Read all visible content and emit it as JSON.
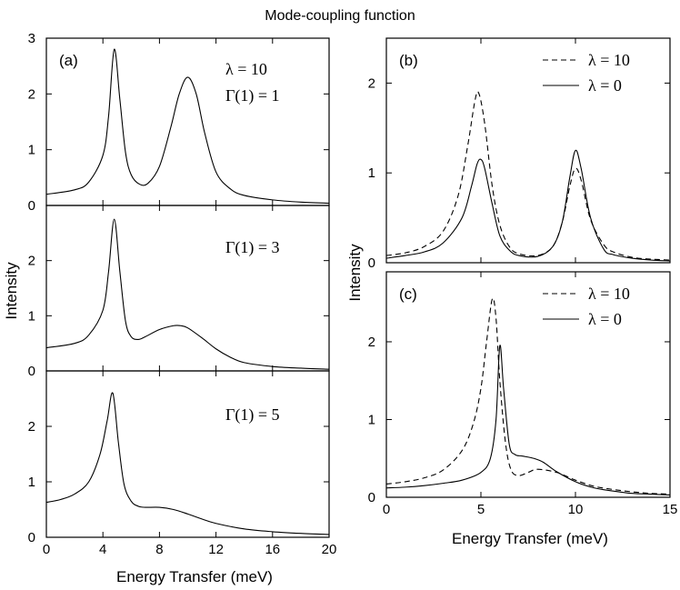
{
  "figure": {
    "title": "Mode-coupling function",
    "left_xlabel": "Energy Transfer (meV)",
    "left_ylabel": "Intensity",
    "right_xlabel": "Energy Transfer (meV)",
    "right_ylabel": "Intensity"
  },
  "chart_data": [
    {
      "id": "a1",
      "type": "line",
      "panel_label": "(a)",
      "annotations": [
        "λ = 10",
        "Γ(1) = 1"
      ],
      "xlim": [
        0,
        20
      ],
      "ylim": [
        0,
        3
      ],
      "xticks": [
        0,
        4,
        8,
        12,
        16,
        20
      ],
      "yticks": [
        0,
        1,
        2,
        3
      ],
      "ytick_labels": [
        "0",
        "1",
        "2",
        "3"
      ],
      "show_xtick_labels": false,
      "series": [
        {
          "name": "Γ(1) = 1",
          "style": "solid",
          "x": [
            0,
            2,
            3,
            4,
            4.4,
            4.8,
            5.2,
            5.6,
            6,
            6.6,
            7.2,
            8,
            8.8,
            9.4,
            10,
            10.6,
            11.2,
            12,
            13,
            14,
            16,
            18,
            20
          ],
          "y": [
            0.2,
            0.28,
            0.42,
            0.9,
            1.6,
            2.8,
            1.9,
            0.95,
            0.55,
            0.38,
            0.4,
            0.7,
            1.4,
            2.0,
            2.3,
            2.0,
            1.3,
            0.6,
            0.3,
            0.18,
            0.1,
            0.06,
            0.04
          ]
        }
      ]
    },
    {
      "id": "a2",
      "type": "line",
      "panel_label": "",
      "annotations": [
        "Γ(1) = 3"
      ],
      "xlim": [
        0,
        20
      ],
      "ylim": [
        0,
        3
      ],
      "xticks": [
        0,
        4,
        8,
        12,
        16,
        20
      ],
      "yticks": [
        0,
        1,
        2
      ],
      "ytick_labels": [
        "0",
        "1",
        "2"
      ],
      "show_xtick_labels": false,
      "series": [
        {
          "name": "Γ(1) = 3",
          "style": "solid",
          "x": [
            0,
            2,
            3,
            4,
            4.4,
            4.8,
            5.2,
            5.6,
            6,
            6.5,
            7,
            8,
            9,
            9.5,
            10,
            11,
            12,
            13,
            14,
            16,
            18,
            20
          ],
          "y": [
            0.42,
            0.5,
            0.65,
            1.1,
            1.8,
            2.75,
            1.8,
            0.9,
            0.62,
            0.57,
            0.62,
            0.75,
            0.82,
            0.82,
            0.78,
            0.6,
            0.4,
            0.25,
            0.15,
            0.08,
            0.05,
            0.03
          ]
        }
      ]
    },
    {
      "id": "a3",
      "type": "line",
      "panel_label": "",
      "annotations": [
        "Γ(1) = 5"
      ],
      "xlim": [
        0,
        20
      ],
      "ylim": [
        0,
        3
      ],
      "xticks": [
        0,
        4,
        8,
        12,
        16,
        20
      ],
      "yticks": [
        0,
        1,
        2
      ],
      "ytick_labels": [
        "0",
        "1",
        "2"
      ],
      "show_xtick_labels": true,
      "xtick_labels": [
        "0",
        "4",
        "8",
        "12",
        "16",
        "20"
      ],
      "series": [
        {
          "name": "Γ(1) = 5",
          "style": "solid",
          "x": [
            0,
            1,
            2,
            3,
            3.8,
            4.3,
            4.7,
            5.1,
            5.5,
            6,
            6.5,
            7,
            8,
            9,
            10,
            11,
            12,
            14,
            16,
            18,
            20
          ],
          "y": [
            0.63,
            0.68,
            0.78,
            1.0,
            1.5,
            2.1,
            2.6,
            1.7,
            0.95,
            0.65,
            0.56,
            0.54,
            0.54,
            0.5,
            0.42,
            0.33,
            0.25,
            0.15,
            0.1,
            0.07,
            0.05
          ]
        }
      ]
    },
    {
      "id": "b",
      "type": "line",
      "panel_label": "(b)",
      "annotations": [],
      "xlim": [
        0,
        15
      ],
      "ylim": [
        0,
        2.5
      ],
      "xticks": [
        0,
        5,
        10,
        15
      ],
      "yticks": [
        0,
        1,
        2
      ],
      "ytick_labels": [
        "0",
        "1",
        "2"
      ],
      "show_xtick_labels": false,
      "legend": [
        {
          "label": "λ = 10",
          "style": "dashed"
        },
        {
          "label": "λ =  0",
          "style": "solid"
        }
      ],
      "series": [
        {
          "name": "λ = 10",
          "style": "dashed",
          "x": [
            0,
            1,
            2,
            3,
            3.8,
            4.3,
            4.7,
            4.9,
            5.2,
            5.6,
            6,
            6.5,
            7,
            8,
            8.8,
            9.3,
            9.7,
            10,
            10.3,
            10.8,
            11.5,
            12,
            13,
            14,
            15
          ],
          "y": [
            0.08,
            0.11,
            0.18,
            0.35,
            0.75,
            1.3,
            1.82,
            1.88,
            1.55,
            0.85,
            0.42,
            0.18,
            0.1,
            0.08,
            0.18,
            0.45,
            0.85,
            1.05,
            0.92,
            0.48,
            0.2,
            0.12,
            0.06,
            0.04,
            0.03
          ]
        },
        {
          "name": "λ =  0",
          "style": "solid",
          "x": [
            0,
            1,
            2,
            3,
            4,
            4.5,
            4.8,
            5,
            5.2,
            5.6,
            6,
            6.5,
            7,
            8,
            8.8,
            9.3,
            9.7,
            10,
            10.3,
            10.8,
            11.5,
            12,
            13,
            14,
            15
          ],
          "y": [
            0.05,
            0.08,
            0.12,
            0.22,
            0.5,
            0.85,
            1.1,
            1.15,
            1.05,
            0.65,
            0.3,
            0.14,
            0.08,
            0.07,
            0.18,
            0.45,
            0.95,
            1.25,
            1.05,
            0.5,
            0.15,
            0.09,
            0.05,
            0.03,
            0.02
          ]
        }
      ]
    },
    {
      "id": "c",
      "type": "line",
      "panel_label": "(c)",
      "annotations": [],
      "xlim": [
        0,
        15
      ],
      "ylim": [
        0,
        2.9
      ],
      "xticks": [
        0,
        5,
        10,
        15
      ],
      "yticks": [
        0,
        1,
        2
      ],
      "ytick_labels": [
        "0",
        "1",
        "2"
      ],
      "show_xtick_labels": true,
      "xtick_labels": [
        "0",
        "5",
        "10",
        "15"
      ],
      "legend": [
        {
          "label": "λ = 10",
          "style": "dashed"
        },
        {
          "label": "λ =  0",
          "style": "solid"
        }
      ],
      "series": [
        {
          "name": "λ = 10",
          "style": "dashed",
          "x": [
            0,
            1,
            2,
            3,
            4,
            4.6,
            5,
            5.3,
            5.6,
            5.8,
            6,
            6.3,
            6.6,
            7,
            7.5,
            8,
            9,
            10,
            11,
            12,
            13,
            14,
            15
          ],
          "y": [
            0.17,
            0.2,
            0.25,
            0.35,
            0.6,
            0.95,
            1.4,
            2.0,
            2.55,
            2.3,
            1.5,
            0.7,
            0.35,
            0.28,
            0.32,
            0.36,
            0.32,
            0.22,
            0.14,
            0.1,
            0.07,
            0.05,
            0.04
          ]
        },
        {
          "name": "λ =  0",
          "style": "solid",
          "x": [
            0,
            1,
            2,
            3,
            4,
            5,
            5.5,
            5.8,
            6,
            6.2,
            6.5,
            6.8,
            7.2,
            7.8,
            8.3,
            9,
            10,
            11,
            12,
            13,
            14,
            15
          ],
          "y": [
            0.12,
            0.13,
            0.15,
            0.18,
            0.22,
            0.32,
            0.5,
            1.0,
            1.95,
            1.4,
            0.68,
            0.55,
            0.53,
            0.5,
            0.45,
            0.33,
            0.2,
            0.12,
            0.08,
            0.05,
            0.04,
            0.03
          ]
        }
      ]
    }
  ]
}
